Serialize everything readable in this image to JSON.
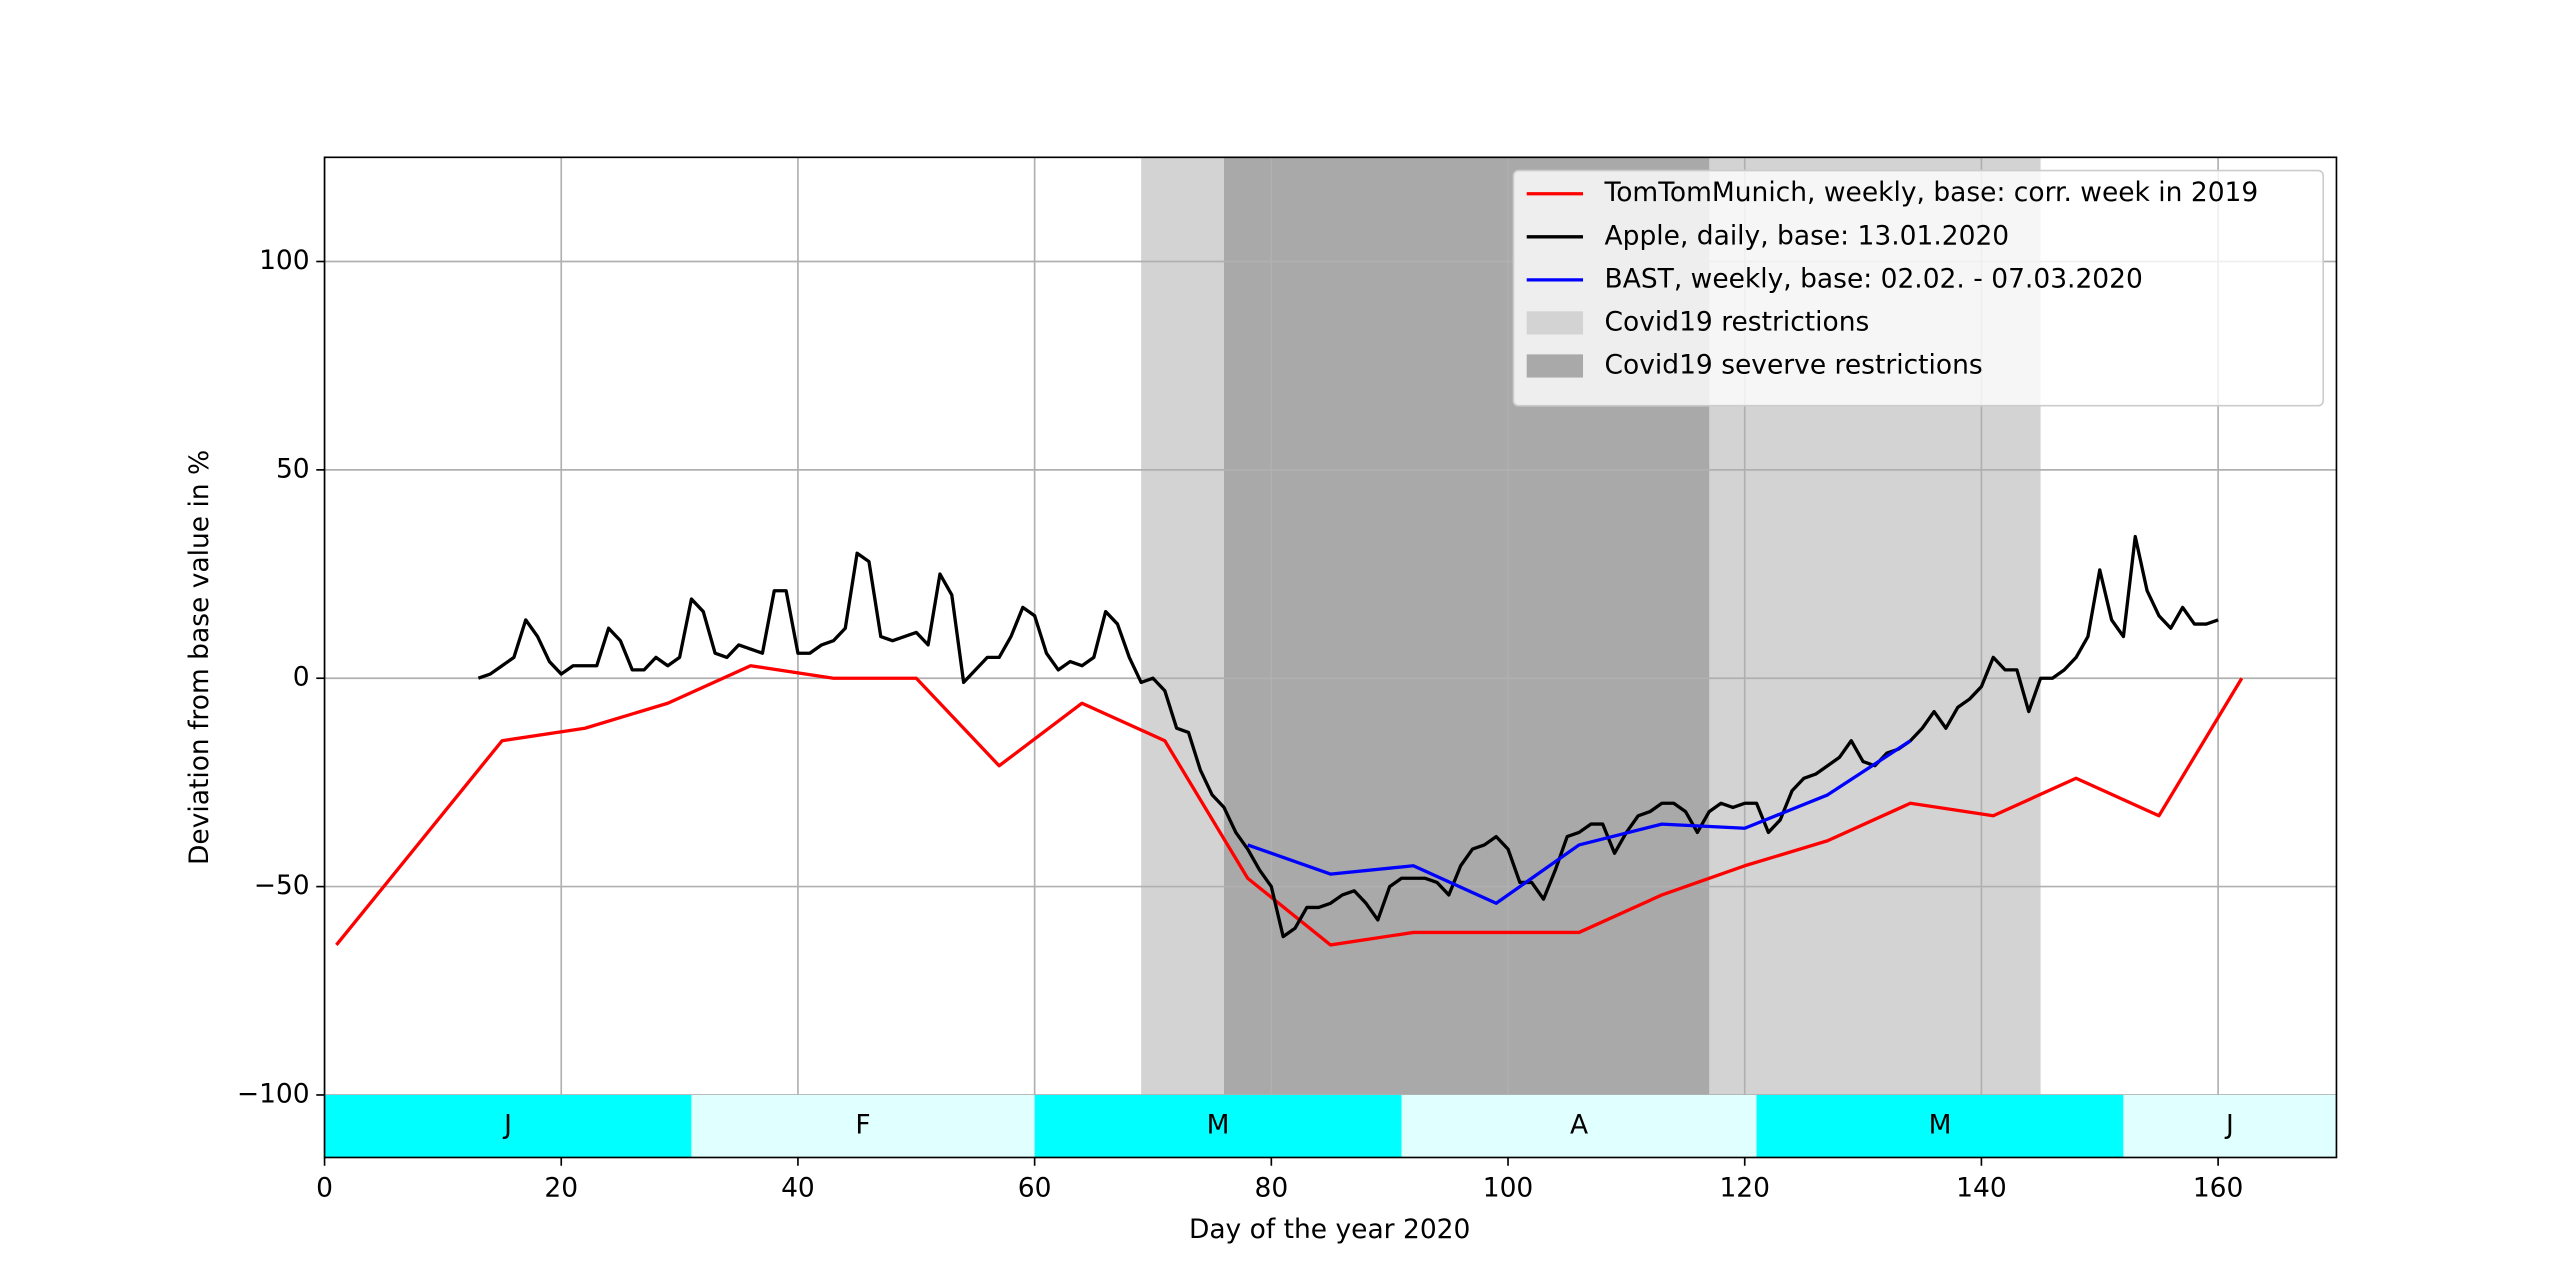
{
  "chart_data": {
    "type": "line",
    "xlabel": "Day of the year 2020",
    "ylabel": "Deviation from base value in %",
    "xlim": [
      0,
      170
    ],
    "ylim": [
      -115,
      125
    ],
    "xticks": [
      0,
      20,
      40,
      60,
      80,
      100,
      120,
      140,
      160
    ],
    "yticks": [
      {
        "value": -100,
        "label": "−100"
      },
      {
        "value": -50,
        "label": "−50"
      },
      0,
      50,
      100
    ],
    "grid": true,
    "legend": "upper right",
    "spans": [
      {
        "name": "Covid19 restrictions",
        "start": 69,
        "end": 145,
        "color": "#d3d3d3"
      },
      {
        "name": "Covid19 severve restrictions",
        "start": 76,
        "end": 117,
        "color": "#a9a9a9"
      }
    ],
    "month_bands": [
      {
        "label": "J",
        "start": 0,
        "end": 31,
        "color": "#00ffff"
      },
      {
        "label": "F",
        "start": 31,
        "end": 60,
        "color": "#e0ffff"
      },
      {
        "label": "M",
        "start": 60,
        "end": 91,
        "color": "#00ffff"
      },
      {
        "label": "A",
        "start": 91,
        "end": 121,
        "color": "#e0ffff"
      },
      {
        "label": "M",
        "start": 121,
        "end": 152,
        "color": "#00ffff"
      },
      {
        "label": "J",
        "start": 152,
        "end": 170,
        "color": "#e0ffff"
      }
    ],
    "series": [
      {
        "name": "TomTomMunich, weekly, base: corr. week in 2019",
        "color": "#ff0000",
        "x": [
          1,
          15,
          22,
          29,
          36,
          43,
          50,
          57,
          64,
          71,
          78,
          85,
          92,
          99,
          106,
          113,
          120,
          127,
          134,
          141,
          148,
          155,
          162
        ],
        "values": [
          -64,
          -15,
          -12,
          -6,
          3,
          0,
          0,
          -21,
          -6,
          -15,
          -48,
          -64,
          -61,
          -61,
          -61,
          -52,
          -45,
          -39,
          -30,
          -33,
          -24,
          -33,
          0
        ]
      },
      {
        "name": "Apple, daily, base: 13.01.2020",
        "color": "#000000",
        "x": [
          13,
          14,
          15,
          16,
          17,
          18,
          19,
          20,
          21,
          22,
          23,
          24,
          25,
          26,
          27,
          28,
          29,
          30,
          31,
          32,
          33,
          34,
          35,
          36,
          37,
          38,
          39,
          40,
          41,
          42,
          43,
          44,
          45,
          46,
          47,
          48,
          49,
          50,
          51,
          52,
          53,
          54,
          55,
          56,
          57,
          58,
          59,
          60,
          61,
          62,
          63,
          64,
          65,
          66,
          67,
          68,
          69,
          70,
          71,
          72,
          73,
          74,
          75,
          76,
          77,
          78,
          79,
          80,
          81,
          82,
          83,
          84,
          85,
          86,
          87,
          88,
          89,
          90,
          91,
          92,
          93,
          94,
          95,
          96,
          97,
          98,
          99,
          100,
          101,
          102,
          103,
          104,
          105,
          106,
          107,
          108,
          109,
          110,
          111,
          112,
          113,
          114,
          115,
          116,
          117,
          118,
          119,
          120,
          121,
          122,
          123,
          124,
          125,
          126,
          127,
          128,
          129,
          130,
          131,
          132,
          133,
          134,
          135,
          136,
          137,
          138,
          139,
          140,
          141,
          142,
          143,
          144,
          145,
          146,
          147,
          148,
          149,
          150,
          151,
          152,
          153,
          154,
          155,
          156,
          157,
          158,
          159,
          160
        ],
        "values": [
          0,
          1,
          3,
          5,
          14,
          10,
          4,
          1,
          3,
          3,
          3,
          12,
          9,
          2,
          2,
          5,
          3,
          5,
          19,
          16,
          6,
          5,
          8,
          7,
          6,
          21,
          21,
          6,
          6,
          8,
          9,
          12,
          30,
          28,
          10,
          9,
          10,
          11,
          8,
          25,
          20,
          -1,
          2,
          5,
          5,
          10,
          17,
          15,
          6,
          2,
          4,
          3,
          5,
          16,
          13,
          5,
          -1,
          0,
          -3,
          -12,
          -13,
          -22,
          -28,
          -31,
          -37,
          -41,
          -46,
          -50,
          -62,
          -60,
          -55,
          -55,
          -54,
          -52,
          -51,
          -54,
          -58,
          -50,
          -48,
          -48,
          -48,
          -49,
          -52,
          -45,
          -41,
          -40,
          -38,
          -41,
          -49,
          -49,
          -53,
          -46,
          -38,
          -37,
          -35,
          -35,
          -42,
          -37,
          -33,
          -32,
          -30,
          -30,
          -32,
          -37,
          -32,
          -30,
          -31,
          -30,
          -30,
          -37,
          -34,
          -27,
          -24,
          -23,
          -21,
          -19,
          -15,
          -20,
          -21,
          -18,
          -17,
          -15,
          -12,
          -8,
          -12,
          -7,
          -5,
          -2,
          5,
          2,
          2,
          -8,
          0,
          0,
          2,
          5,
          10,
          26,
          14,
          10,
          34,
          21,
          15,
          12,
          17,
          13,
          13,
          14
        ]
      },
      {
        "name": "BAST, weekly, base: 02.02. - 07.03.2020",
        "color": "#0000ff",
        "x": [
          78,
          85,
          92,
          99,
          106,
          113,
          120,
          127,
          134
        ],
        "values": [
          -40,
          -47,
          -45,
          -54,
          -40,
          -35,
          -36,
          -28,
          -15
        ]
      }
    ]
  }
}
